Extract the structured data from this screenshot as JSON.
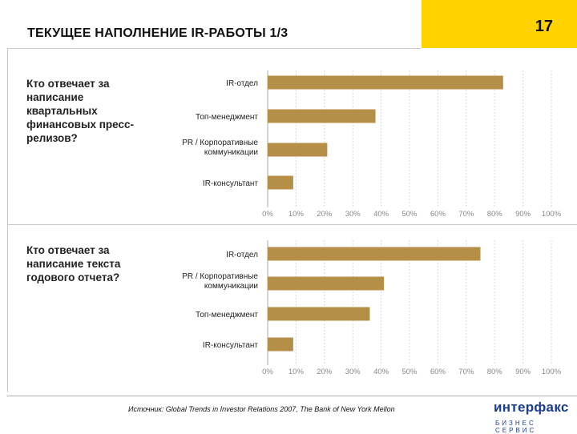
{
  "header": {
    "title": "ТЕКУЩЕЕ НАПОЛНЕНИЕ IR-РАБОТЫ   1/3",
    "page": "17"
  },
  "questions": [
    "Кто отвечает за написание квартальных финансовых пресс-релизов?",
    "Кто отвечает за написание текста годового отчета?"
  ],
  "footer": {
    "source": "Источник: Global Trends in Investor Relations 2007, The Bank of New York Mellon",
    "logo_main": "интерфакс",
    "logo_sub": "БИЗНЕС СЕРВИС"
  },
  "colors": {
    "bar": "#b58f47",
    "accent": "#ffd200",
    "logo": "#1a3d8f"
  },
  "chart_data": [
    {
      "type": "bar",
      "orientation": "horizontal",
      "categories": [
        "IR-отдел",
        "Топ-менеджмент",
        "PR / Корпоративные коммуникации",
        "IR-консультант"
      ],
      "values": [
        83,
        38,
        21,
        9
      ],
      "xlim": [
        0,
        100
      ],
      "xticks": [
        "0%",
        "10%",
        "20%",
        "30%",
        "40%",
        "50%",
        "60%",
        "70%",
        "80%",
        "90%",
        "100%"
      ],
      "grid": true
    },
    {
      "type": "bar",
      "orientation": "horizontal",
      "categories": [
        "IR-отдел",
        "PR / Корпоративные коммуникации",
        "Топ-менеджмент",
        "IR-консультант"
      ],
      "values": [
        75,
        41,
        36,
        9
      ],
      "xlim": [
        0,
        100
      ],
      "xticks": [
        "0%",
        "10%",
        "20%",
        "30%",
        "40%",
        "50%",
        "60%",
        "70%",
        "80%",
        "90%",
        "100%"
      ],
      "grid": true
    }
  ]
}
